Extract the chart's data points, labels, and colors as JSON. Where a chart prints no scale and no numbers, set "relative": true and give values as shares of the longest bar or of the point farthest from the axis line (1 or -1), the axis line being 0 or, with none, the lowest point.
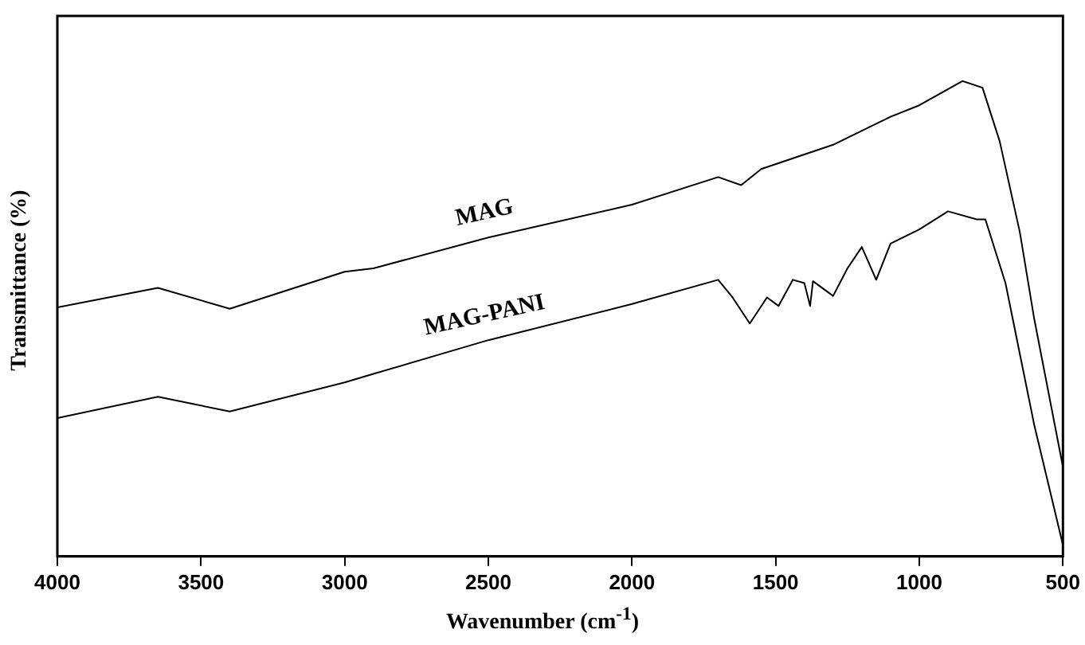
{
  "chart_data": {
    "type": "line",
    "xlabel": "Wavenumber (cm$^{-1}$)",
    "ylabel": "Transmittance (%)",
    "relative": true,
    "xlim": [
      4000,
      500
    ],
    "xticks": [
      4000,
      3500,
      3000,
      2500,
      2000,
      1500,
      1000,
      500
    ],
    "grid": false,
    "legend": false,
    "marker": "none",
    "line_style": "solid",
    "series": [
      {
        "name": "MAG",
        "color": "#000000",
        "x": [
          4000,
          3650,
          3400,
          3000,
          2900,
          2500,
          2000,
          1700,
          1620,
          1550,
          1300,
          1100,
          1000,
          850,
          780,
          720,
          650,
          600,
          500
        ],
        "values": [
          0.524,
          0.565,
          0.521,
          0.599,
          0.606,
          0.671,
          0.74,
          0.798,
          0.781,
          0.815,
          0.866,
          0.925,
          0.949,
          1,
          0.986,
          0.873,
          0.682,
          0.5,
          0.188
        ]
      },
      {
        "name": "MAG-PANI",
        "color": "#000000",
        "x": [
          4000,
          3650,
          3400,
          3000,
          2900,
          2500,
          2000,
          1700,
          1650,
          1590,
          1530,
          1490,
          1440,
          1400,
          1380,
          1370,
          1300,
          1250,
          1200,
          1150,
          1100,
          1000,
          900,
          800,
          770,
          700,
          600,
          500
        ],
        "values": [
          0.291,
          0.336,
          0.305,
          0.366,
          0.384,
          0.455,
          0.531,
          0.582,
          0.545,
          0.49,
          0.545,
          0.527,
          0.582,
          0.575,
          0.527,
          0.579,
          0.548,
          0.606,
          0.651,
          0.582,
          0.658,
          0.688,
          0.726,
          0.709,
          0.709,
          0.575,
          0.277,
          0.024
        ]
      }
    ]
  }
}
